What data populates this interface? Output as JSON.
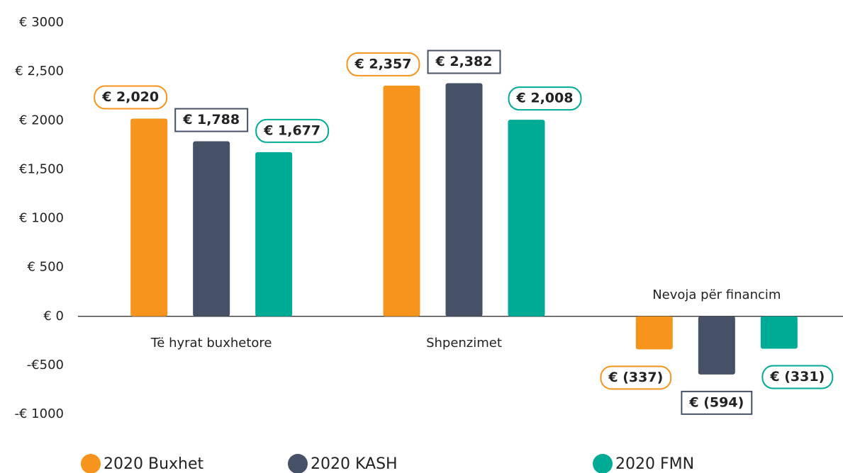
{
  "chart_data": {
    "type": "bar",
    "categories": [
      "Të hyrat buxhetore",
      "Shpenzimet",
      "Nevoja për financim"
    ],
    "series": [
      {
        "name": "2020 Buxhet",
        "color": "#f7941d",
        "values": [
          2020,
          2357,
          -337
        ],
        "value_labels": [
          "€ 2,020",
          "€ 2,357",
          "€ (337)"
        ]
      },
      {
        "name": "2020 KASH",
        "color": "#465166",
        "values": [
          1788,
          2382,
          -594
        ],
        "value_labels": [
          "€ 1,788",
          "€ 2,382",
          "€ (594)"
        ]
      },
      {
        "name": "2020 FMN",
        "color": "#00ab96",
        "values": [
          1677,
          2008,
          -331
        ],
        "value_labels": [
          "€ 1,677",
          "€ 2,008",
          "€ (331)"
        ]
      }
    ],
    "ylim": [
      -1000,
      3000
    ],
    "yticks": [
      {
        "value": 3000,
        "label": "€ 3000"
      },
      {
        "value": 2500,
        "label": "€ 2,500"
      },
      {
        "value": 2000,
        "label": "€ 2000"
      },
      {
        "value": 1500,
        "label": "€1,500"
      },
      {
        "value": 1000,
        "label": "€ 1000"
      },
      {
        "value": 500,
        "label": "€ 500"
      },
      {
        "value": 0,
        "label": "€ 0"
      },
      {
        "value": -500,
        "label": "-€500"
      },
      {
        "value": -1000,
        "label": "-€ 1000"
      }
    ],
    "grid": false,
    "legend": "bottom"
  }
}
